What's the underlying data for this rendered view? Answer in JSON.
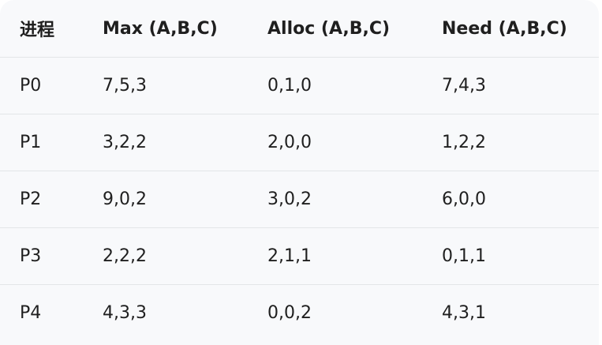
{
  "table": {
    "headers": [
      "进程",
      "Max (A,B,C)",
      "Alloc (A,B,C)",
      "Need (A,B,C)"
    ],
    "rows": [
      [
        "P0",
        "7,5,3",
        "0,1,0",
        "7,4,3"
      ],
      [
        "P1",
        "3,2,2",
        "2,0,0",
        "1,2,2"
      ],
      [
        "P2",
        "9,0,2",
        "3,0,2",
        "6,0,0"
      ],
      [
        "P3",
        "2,2,2",
        "2,1,1",
        "0,1,1"
      ],
      [
        "P4",
        "4,3,3",
        "0,0,2",
        "4,3,1"
      ]
    ]
  },
  "colors": {
    "background": "#f8f9fb",
    "text": "#1f1f1f",
    "divider": "#e3e5e8"
  }
}
